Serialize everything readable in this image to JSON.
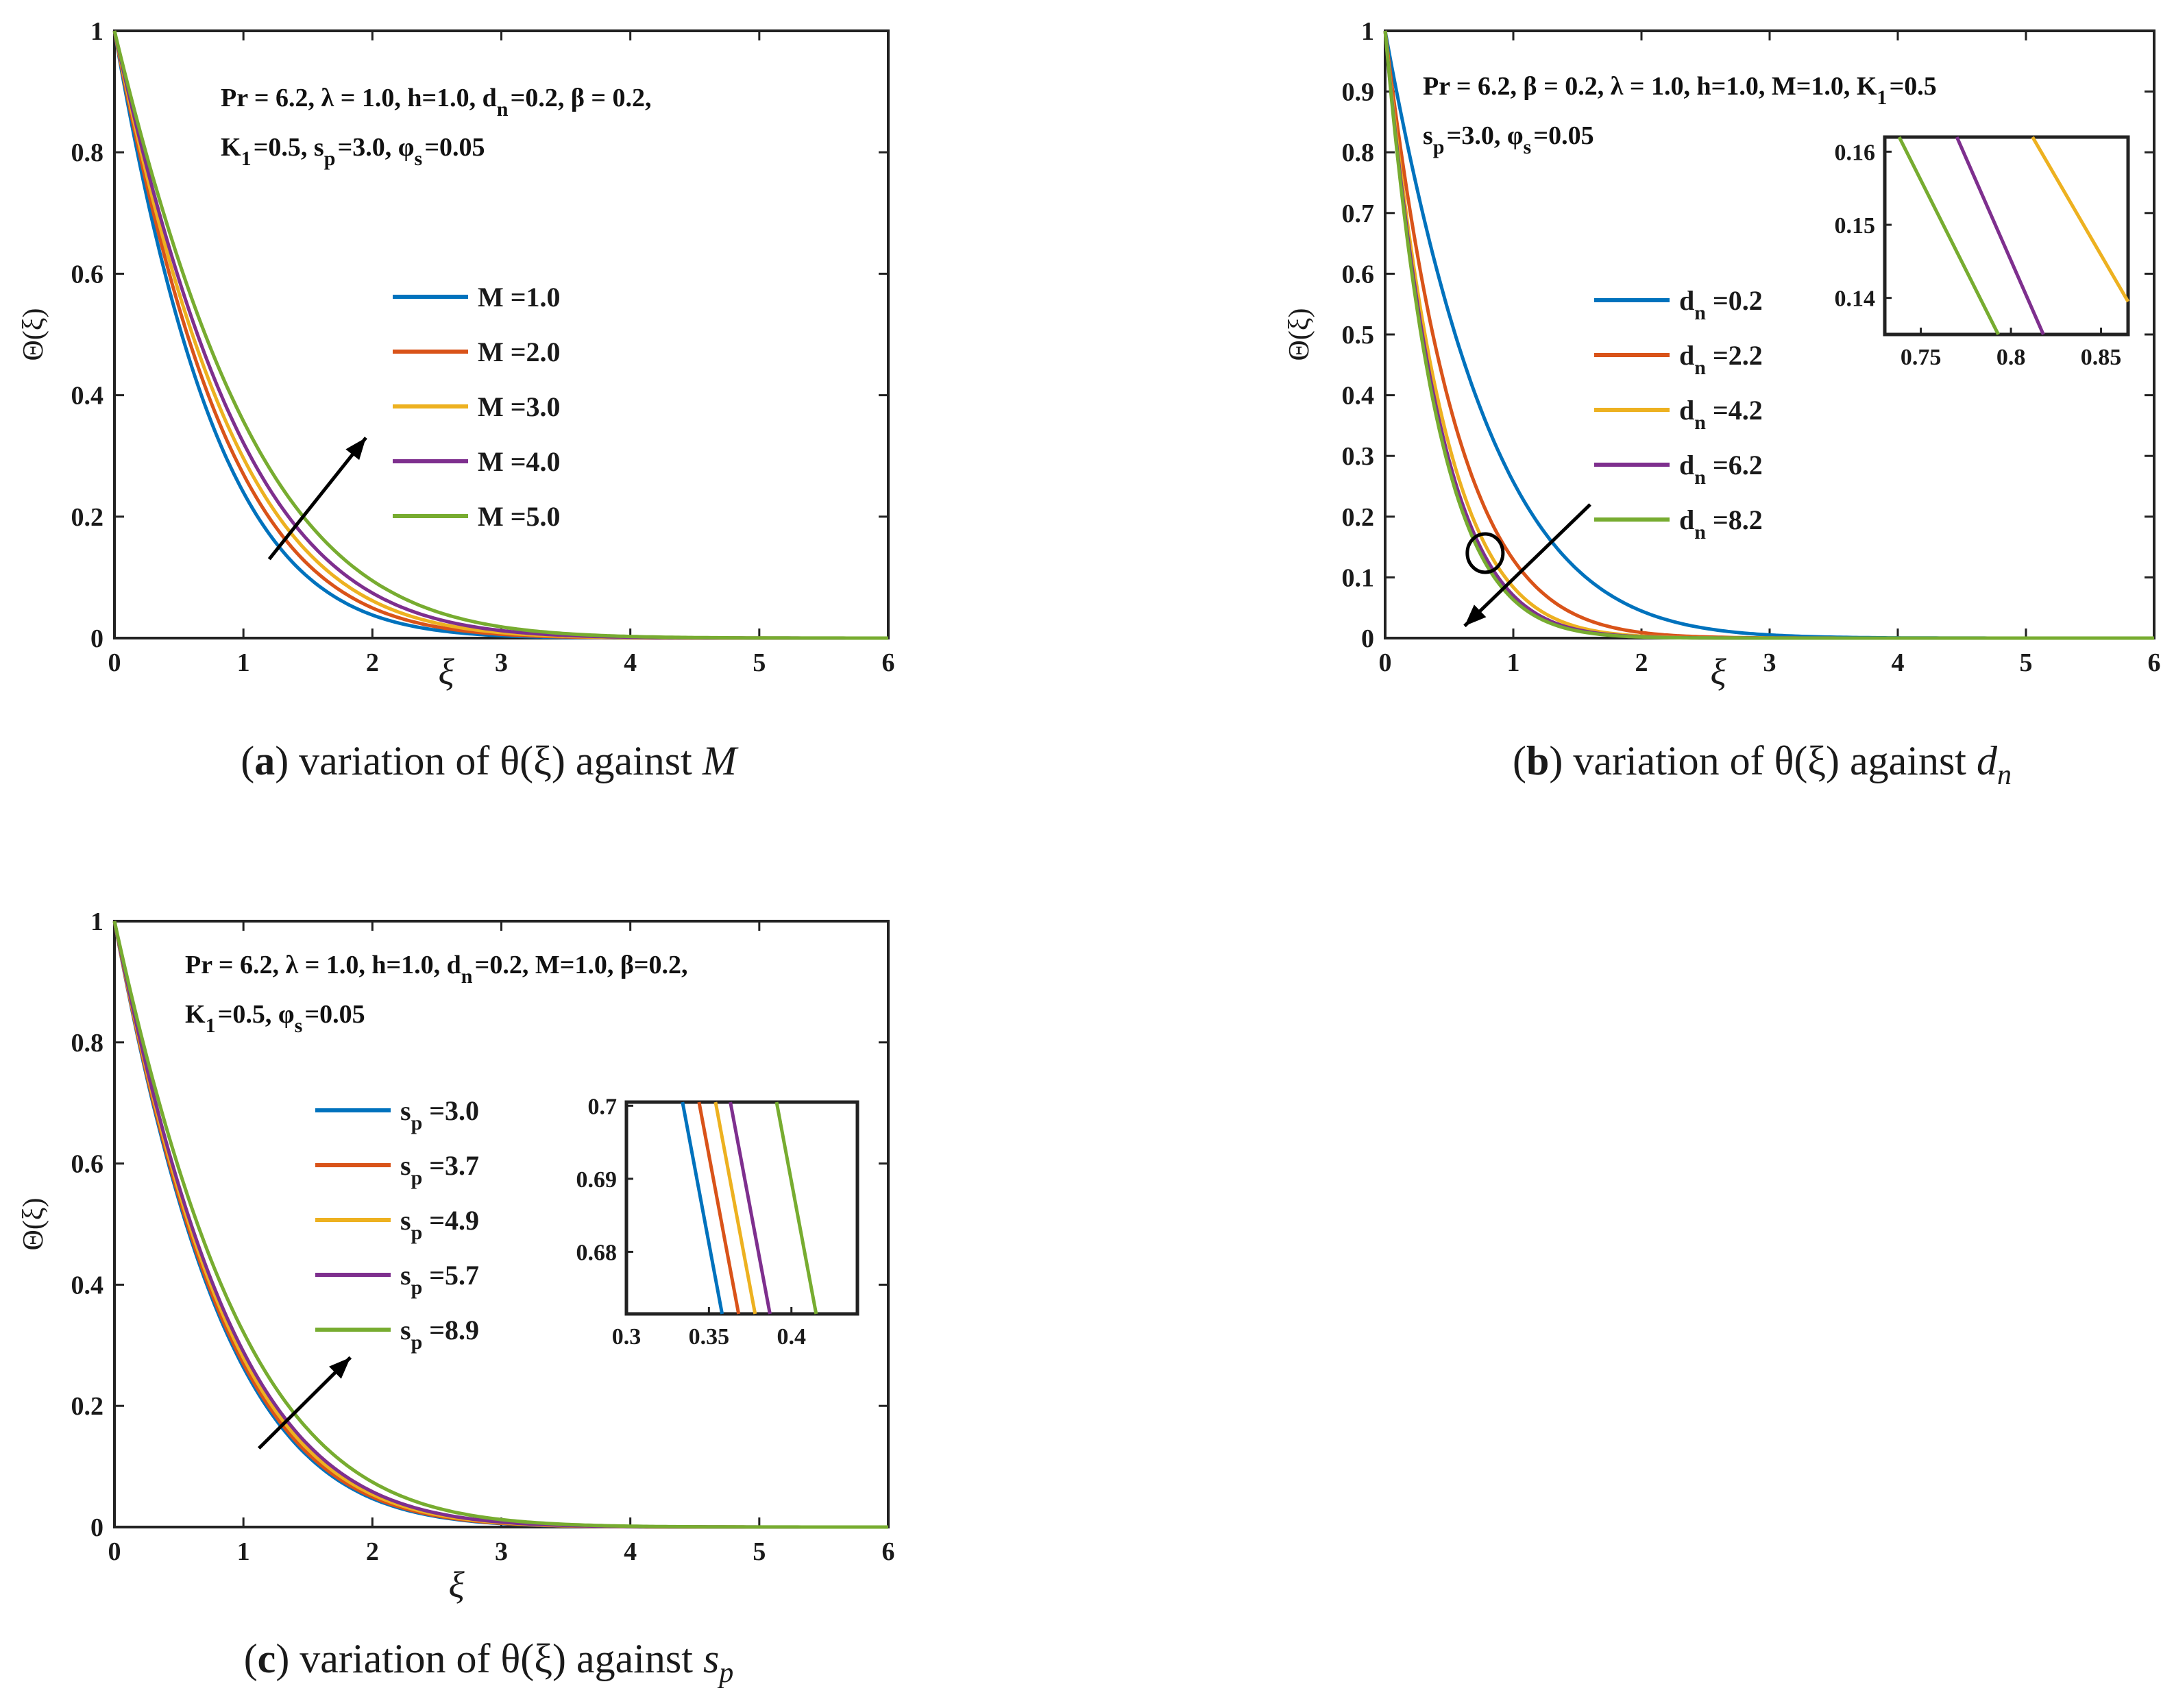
{
  "colors": {
    "series": [
      "#0072bd",
      "#d95319",
      "#edb120",
      "#7e2f8e",
      "#77ac30"
    ],
    "axis": "#222222",
    "text": "#1a1a1a"
  },
  "chart_data": [
    {
      "id": "a",
      "type": "line",
      "caption": {
        "label": "a",
        "text": "variation of θ(ξ) against",
        "symbol": "M"
      },
      "xlabel": "ξ",
      "ylabel": "Θ(ξ)",
      "xlim": [
        0,
        6
      ],
      "ylim": [
        0,
        1
      ],
      "xticks": [
        "0",
        "1",
        "2",
        "3",
        "4",
        "5",
        "6"
      ],
      "yticks": [
        "0",
        "0.2",
        "0.4",
        "0.6",
        "0.8",
        "1"
      ],
      "annotation": {
        "line1": "Pr = 6.2,  λ = 1.0, h=1.0, d<sub>n</sub>=0.2, β = 0.2,",
        "line2": "K<sub>1</sub>=0.5, s<sub>p</sub>=3.0, φ<sub>s</sub>=0.05"
      },
      "series": [
        {
          "name": "M =1.0",
          "decay": 1.22
        },
        {
          "name": "M =2.0",
          "decay": 1.12
        },
        {
          "name": "M =3.0",
          "decay": 1.04
        },
        {
          "name": "M =4.0",
          "decay": 0.97
        },
        {
          "name": "M =5.0",
          "decay": 0.88
        }
      ],
      "arrow": {
        "from": [
          1.2,
          0.13
        ],
        "to": [
          1.95,
          0.33
        ]
      }
    },
    {
      "id": "b",
      "type": "line",
      "caption": {
        "label": "b",
        "text": "variation of θ(ξ) against",
        "symbol": "d",
        "sub": "n"
      },
      "xlabel": "ξ",
      "ylabel": "Θ(ξ)",
      "xlim": [
        0,
        6
      ],
      "ylim": [
        0,
        1
      ],
      "xticks": [
        "0",
        "1",
        "2",
        "3",
        "4",
        "5",
        "6"
      ],
      "yticks": [
        "0",
        "0.1",
        "0.2",
        "0.3",
        "0.4",
        "0.5",
        "0.6",
        "0.7",
        "0.8",
        "0.9",
        "1"
      ],
      "annotation": {
        "line1": "Pr = 6.2, β = 0.2, λ = 1.0, h=1.0, M=1.0, K<sub>1</sub>=0.5",
        "line2": "s<sub>p</sub>=3.0, φ<sub>s</sub>=0.05"
      },
      "series": [
        {
          "name": "d",
          "sub": "n",
          "value": "=0.2",
          "decay": 1.16
        },
        {
          "name": "d",
          "sub": "n",
          "value": "=2.2",
          "decay": 1.75
        },
        {
          "name": "d",
          "sub": "n",
          "value": "=4.2",
          "decay": 2.12
        },
        {
          "name": "d",
          "sub": "n",
          "value": "=6.2",
          "decay": 2.27
        },
        {
          "name": "d",
          "sub": "n",
          "value": "=8.2",
          "decay": 2.36
        }
      ],
      "arrow": {
        "from": [
          1.6,
          0.22
        ],
        "to": [
          0.62,
          0.02
        ]
      },
      "circle": {
        "x": 0.78,
        "y": 0.14
      },
      "inset": {
        "xlim": [
          0.73,
          0.865
        ],
        "ylim": [
          0.135,
          0.162
        ],
        "xticks": [
          "0.75",
          "0.8",
          "0.85"
        ],
        "yticks": [
          "0.14",
          "0.15",
          "0.16"
        ],
        "lines": [
          {
            "series": 2,
            "x0": 0.812,
            "y0": 0.162,
            "x1": 0.865,
            "y1": 0.1395
          },
          {
            "series": 3,
            "x0": 0.77,
            "y0": 0.162,
            "x1": 0.818,
            "y1": 0.135
          },
          {
            "series": 4,
            "x0": 0.738,
            "y0": 0.162,
            "x1": 0.793,
            "y1": 0.135
          }
        ]
      }
    },
    {
      "id": "c",
      "type": "line",
      "caption": {
        "label": "c",
        "text": "variation of θ(ξ) against",
        "symbol": "s",
        "sub": "p"
      },
      "xlabel": "ξ",
      "ylabel": "Θ(ξ)",
      "xlim": [
        0,
        6
      ],
      "ylim": [
        0,
        1
      ],
      "xticks": [
        "0",
        "1",
        "2",
        "3",
        "4",
        "5",
        "6"
      ],
      "yticks": [
        "0",
        "0.2",
        "0.4",
        "0.6",
        "0.8",
        "1"
      ],
      "annotation": {
        "line1": "Pr = 6.2, λ = 1.0, h=1.0, d<sub>n</sub>=0.2, M=1.0, β=0.2,",
        "line2": "K<sub>1</sub>=0.5, φ<sub>s</sub>=0.05"
      },
      "series": [
        {
          "name": "s",
          "sub": "p",
          "value": "=3.0",
          "decay": 1.14
        },
        {
          "name": "s",
          "sub": "p",
          "value": "=3.7",
          "decay": 1.12
        },
        {
          "name": "s",
          "sub": "p",
          "value": "=4.9",
          "decay": 1.09
        },
        {
          "name": "s",
          "sub": "p",
          "value": "=5.7",
          "decay": 1.06
        },
        {
          "name": "s",
          "sub": "p",
          "value": "=8.9",
          "decay": 0.97
        }
      ],
      "arrow": {
        "from": [
          1.12,
          0.13
        ],
        "to": [
          1.83,
          0.28
        ]
      },
      "inset": {
        "xlim": [
          0.3,
          0.44
        ],
        "ylim": [
          0.6715,
          0.7005
        ],
        "xticks": [
          "0.3",
          "0.35",
          "0.4"
        ],
        "yticks": [
          "0.68",
          "0.69",
          "0.7"
        ],
        "lines": [
          {
            "series": 0,
            "x0": 0.334,
            "y0": 0.7005,
            "x1": 0.358,
            "y1": 0.6715
          },
          {
            "series": 1,
            "x0": 0.344,
            "y0": 0.7005,
            "x1": 0.368,
            "y1": 0.6715
          },
          {
            "series": 2,
            "x0": 0.354,
            "y0": 0.7005,
            "x1": 0.378,
            "y1": 0.6715
          },
          {
            "series": 3,
            "x0": 0.363,
            "y0": 0.7005,
            "x1": 0.387,
            "y1": 0.6715
          },
          {
            "series": 4,
            "x0": 0.391,
            "y0": 0.7005,
            "x1": 0.415,
            "y1": 0.6715
          }
        ]
      }
    }
  ]
}
